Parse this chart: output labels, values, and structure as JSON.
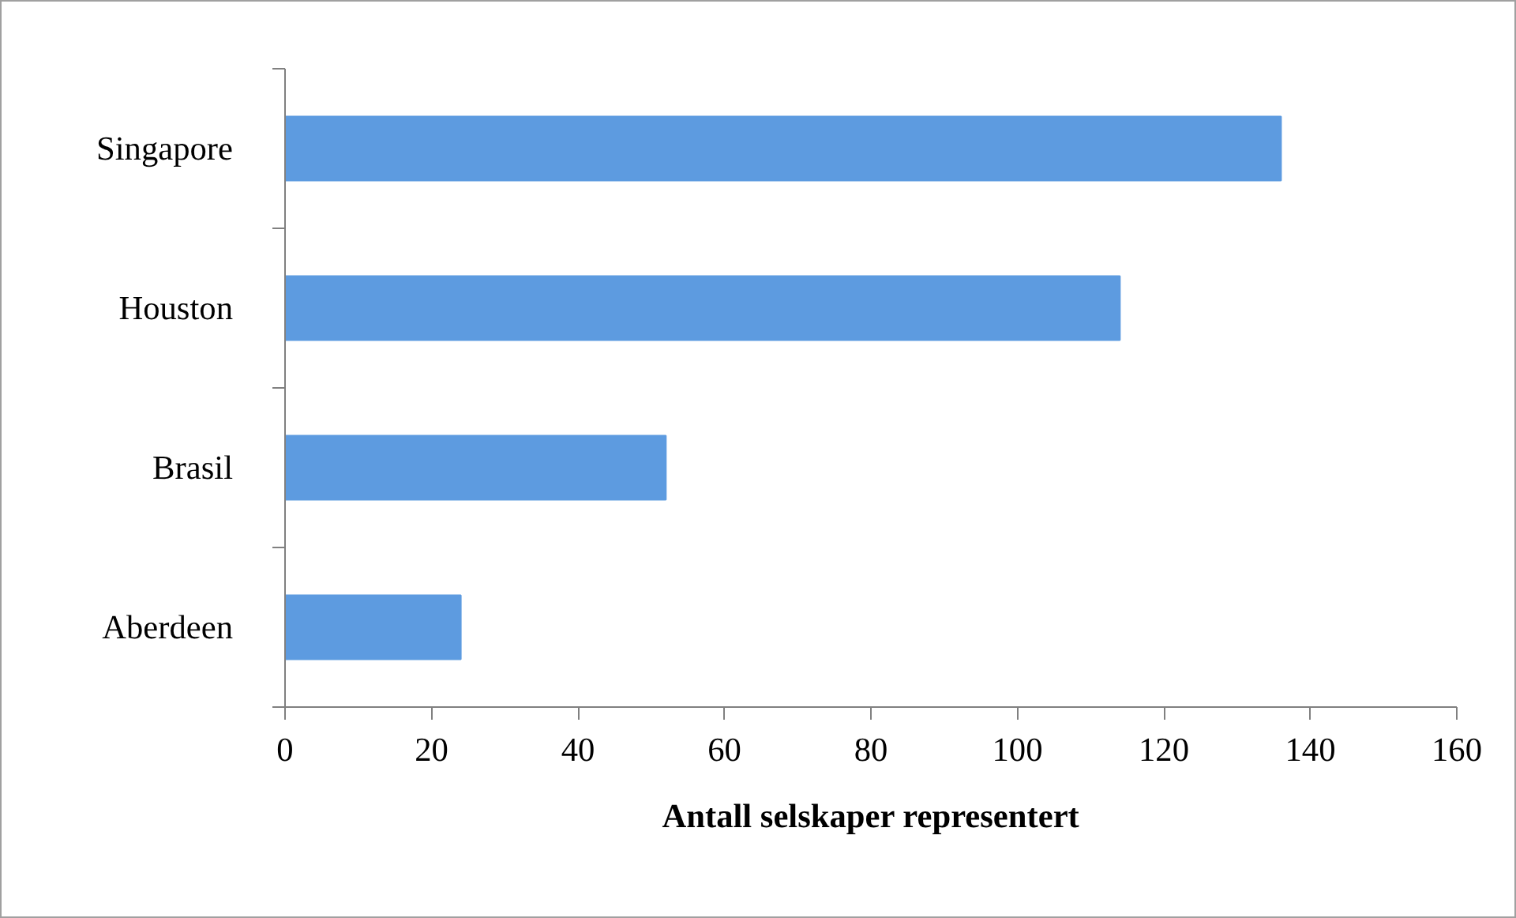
{
  "chart_data": {
    "type": "bar",
    "orientation": "horizontal",
    "categories": [
      "Singapore",
      "Houston",
      "Brasil",
      "Aberdeen"
    ],
    "values": [
      136,
      114,
      52,
      24
    ],
    "color": "#5d9be0",
    "xlabel": "Antall selskaper representert",
    "xlim": [
      0,
      160
    ],
    "xticks": [
      0,
      20,
      40,
      60,
      80,
      100,
      120,
      140,
      160
    ],
    "grid": false
  }
}
